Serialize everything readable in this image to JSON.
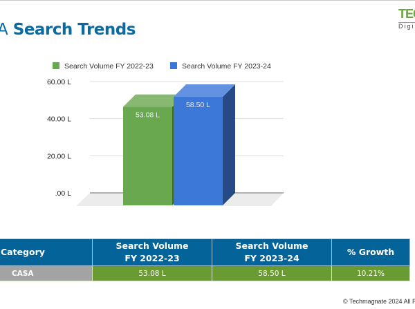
{
  "title": {
    "prefix": "A",
    "main": "Search Trends"
  },
  "logo": {
    "line1": "TEC",
    "line2": "Digi"
  },
  "chart_data": {
    "type": "bar",
    "three_d": true,
    "categories": [
      "CASA"
    ],
    "series": [
      {
        "name": "Search Volume FY 2022-23",
        "values": [
          53.08
        ],
        "label": "53.08 L",
        "color": "#6aa84f"
      },
      {
        "name": "Search Volume FY 2023-24",
        "values": [
          58.5
        ],
        "label": "58.50 L",
        "color": "#3c78d8"
      }
    ],
    "yticks": [
      "60.00 L",
      "40.00 L",
      "20.00 L",
      ".00 L"
    ],
    "ytick_values": [
      60,
      40,
      20,
      0
    ],
    "ylim": [
      0,
      60
    ],
    "grid": true,
    "legend": "top"
  },
  "table": {
    "headers": [
      "Category",
      "Search Volume FY 2022-23",
      "Search Volume FY 2023-24",
      "% Growth"
    ],
    "header_lines": [
      [
        "Category"
      ],
      [
        "Search Volume",
        "FY 2022-23"
      ],
      [
        "Search Volume",
        "FY 2023-24"
      ],
      [
        "% Growth"
      ]
    ],
    "rows": [
      [
        "CASA",
        "53.08 L",
        "58.50 L",
        "10.21%"
      ]
    ]
  },
  "footer": "© Techmagnate 2024 All R"
}
